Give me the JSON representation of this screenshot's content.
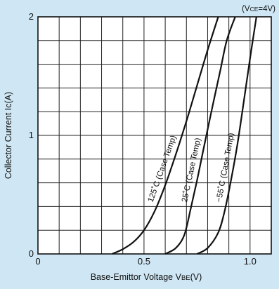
{
  "chart_data": {
    "type": "line",
    "title": "",
    "condition": "(V",
    "condition_sub": "CE",
    "condition_val": "=4V)",
    "xlabel": "Base-Emittor Voltage V",
    "xlabel_sub": "BE",
    "xlabel_unit": "(V)",
    "ylabel": "Collector Current Ic(A)",
    "xlim": [
      0,
      1.1
    ],
    "ylim": [
      0,
      2
    ],
    "x_ticks": [
      {
        "value": 0,
        "label": "0"
      },
      {
        "value": 0.5,
        "label": "0.5"
      },
      {
        "value": 1.0,
        "label": "1.0"
      }
    ],
    "y_ticks": [
      {
        "value": 0,
        "label": "0"
      },
      {
        "value": 1,
        "label": "1"
      },
      {
        "value": 2,
        "label": "2"
      }
    ],
    "grid": true,
    "x_gridlines": 11,
    "y_gridlines": 10,
    "series": [
      {
        "name": "125˚C (Case Temp)",
        "x": [
          0.35,
          0.4,
          0.45,
          0.5,
          0.55,
          0.6,
          0.65,
          0.7,
          0.75,
          0.8,
          0.85
        ],
        "y": [
          0.0,
          0.04,
          0.1,
          0.2,
          0.36,
          0.58,
          0.84,
          1.12,
          1.42,
          1.72,
          2.0
        ]
      },
      {
        "name": "25˚C (Case Temp)",
        "x": [
          0.6,
          0.65,
          0.69,
          0.72,
          0.75,
          0.78,
          0.82,
          0.86,
          0.89,
          0.93
        ],
        "y": [
          0.0,
          0.05,
          0.16,
          0.38,
          0.62,
          0.88,
          1.22,
          1.55,
          1.8,
          2.0
        ]
      },
      {
        "name": "−55˚C (Case Temp)",
        "x": [
          0.75,
          0.8,
          0.85,
          0.88,
          0.91,
          0.94,
          0.97,
          1.0,
          1.03
        ],
        "y": [
          0.0,
          0.05,
          0.18,
          0.36,
          0.62,
          0.92,
          1.28,
          1.65,
          2.0
        ]
      }
    ]
  }
}
